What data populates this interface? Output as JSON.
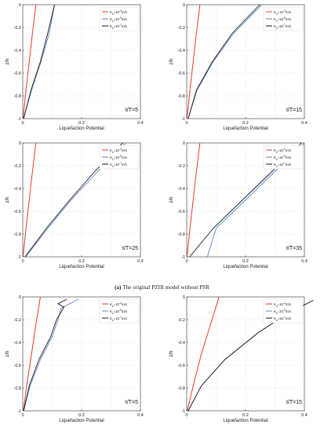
{
  "caption": {
    "label": "(a)",
    "text": "The original PZIII model without PSR"
  },
  "colors": {
    "red": "#e8392e",
    "blue": "#5b87c5",
    "black": "#1a1a1a",
    "grid": "#dcdcdc",
    "axis": "#333333"
  },
  "chart_data": [
    {
      "type": "line",
      "panel_label": "t/T=5",
      "xlabel": "Liquefaction Potential",
      "ylabel": "z/h",
      "xlim": [
        0,
        0.4
      ],
      "ylim": [
        -1,
        0
      ],
      "xticks": [
        0,
        0.2,
        0.4
      ],
      "yticks": [
        -1,
        -0.8,
        -0.6,
        -0.4,
        -0.2,
        0
      ],
      "grid": true,
      "legend_position": "top-right",
      "series": [
        {
          "name": "K_s=10^-3 m/s",
          "color": "red",
          "x": [
            0.045,
            0.033,
            0.022,
            0.011,
            0.001
          ],
          "y": [
            0,
            -0.25,
            -0.5,
            -0.75,
            -1
          ]
        },
        {
          "name": "K_s=10^-5 m/s",
          "color": "blue",
          "x": [
            0.108,
            0.09,
            0.062,
            0.03,
            0.003
          ],
          "y": [
            0,
            -0.25,
            -0.5,
            -0.75,
            -1
          ]
        },
        {
          "name": "K_s=10^-7 m/s",
          "color": "black",
          "x": [
            0.108,
            0.085,
            0.06,
            0.028,
            0.003
          ],
          "y": [
            0,
            -0.25,
            -0.5,
            -0.75,
            -1
          ]
        }
      ]
    },
    {
      "type": "line",
      "panel_label": "t/T=15",
      "xlabel": "Liquefaction Potential",
      "ylabel": "z/h",
      "xlim": [
        0,
        0.4
      ],
      "ylim": [
        -1,
        0
      ],
      "xticks": [
        0,
        0.2,
        0.4
      ],
      "yticks": [
        -1,
        -0.8,
        -0.6,
        -0.4,
        -0.2,
        0
      ],
      "grid": true,
      "legend_position": "top-right",
      "series": [
        {
          "name": "K_s=10^-3 m/s",
          "color": "red",
          "x": [
            0.045,
            0.033,
            0.022,
            0.011,
            0.001
          ],
          "y": [
            0,
            -0.25,
            -0.5,
            -0.75,
            -1
          ]
        },
        {
          "name": "K_s=10^-5 m/s",
          "color": "blue",
          "x": [
            0.255,
            0.16,
            0.09,
            0.035,
            0.005
          ],
          "y": [
            0,
            -0.25,
            -0.5,
            -0.75,
            -1
          ]
        },
        {
          "name": "K_s=10^-7 m/s",
          "color": "black",
          "x": [
            0.248,
            0.155,
            0.087,
            0.033,
            0.005
          ],
          "y": [
            0,
            -0.25,
            -0.5,
            -0.75,
            -1
          ]
        }
      ]
    },
    {
      "type": "line",
      "panel_label": "t/T=25",
      "xlabel": "Liquefaction Potential",
      "ylabel": "z/h",
      "xlim": [
        0,
        0.4
      ],
      "ylim": [
        -1,
        0
      ],
      "xticks": [
        0,
        0.2,
        0.4
      ],
      "yticks": [
        -1,
        -0.8,
        -0.6,
        -0.4,
        -0.2,
        0
      ],
      "grid": true,
      "legend_position": "top-right",
      "series": [
        {
          "name": "K_s=10^-3 m/s",
          "color": "red",
          "x": [
            0.045,
            0.033,
            0.022,
            0.011,
            0.001
          ],
          "y": [
            0,
            -0.25,
            -0.5,
            -0.75,
            -1
          ]
        },
        {
          "name": "K_s=10^-5 m/s",
          "color": "blue",
          "x": [
            0.35,
            0.255,
            0.165,
            0.085,
            0.01
          ],
          "y": [
            0,
            -0.25,
            -0.5,
            -0.75,
            -1
          ]
        },
        {
          "name": "K_s=10^-7 m/s",
          "color": "black",
          "x": [
            0.34,
            0.245,
            0.16,
            0.08,
            0.008
          ],
          "y": [
            0,
            -0.25,
            -0.5,
            -0.75,
            -1
          ]
        }
      ]
    },
    {
      "type": "line",
      "panel_label": "t/T=35",
      "xlabel": "Liquefaction Potential",
      "ylabel": "z/h",
      "xlim": [
        0,
        0.4
      ],
      "ylim": [
        -1,
        0
      ],
      "xticks": [
        0,
        0.2,
        0.4
      ],
      "yticks": [
        -1,
        -0.8,
        -0.6,
        -0.4,
        -0.2,
        0
      ],
      "grid": true,
      "legend_position": "top-right",
      "series": [
        {
          "name": "K_s=10^-3 m/s",
          "color": "red",
          "x": [
            0.045,
            0.033,
            0.022,
            0.011,
            0.001
          ],
          "y": [
            0,
            -0.25,
            -0.5,
            -0.75,
            -1
          ]
        },
        {
          "name": "K_s=10^-5 m/s",
          "color": "blue",
          "x": [
            0.4,
            0.3,
            0.2,
            0.1,
            0.07
          ],
          "y": [
            0,
            -0.25,
            -0.5,
            -0.75,
            -1
          ]
        },
        {
          "name": "K_s=10^-7 m/s",
          "color": "black",
          "x": [
            0.39,
            0.29,
            0.19,
            0.09,
            0.01
          ],
          "y": [
            0,
            -0.25,
            -0.5,
            -0.75,
            -1
          ]
        }
      ]
    },
    {
      "type": "line",
      "panel_label": "t/T=5",
      "xlabel": "Liquefaction Potential",
      "ylabel": "z/h",
      "xlim": [
        0,
        0.4
      ],
      "ylim": [
        -1,
        0
      ],
      "xticks": [
        0,
        0.2,
        0.4
      ],
      "yticks": [
        -1,
        -0.8,
        -0.6,
        -0.4,
        -0.2,
        0
      ],
      "grid": true,
      "legend_position": "top-right",
      "series": [
        {
          "name": "K_s=10^-3 m/s",
          "color": "red",
          "x": [
            0.06,
            0.044,
            0.03,
            0.015,
            0.002
          ],
          "y": [
            0,
            -0.25,
            -0.5,
            -0.75,
            -1
          ]
        },
        {
          "name": "K_s=10^-5 m/s",
          "color": "blue",
          "x": [
            0.19,
            0.16,
            0.13,
            0.12,
            0.1,
            0.06,
            0.025,
            0.003
          ],
          "y": [
            -0.02,
            -0.06,
            -0.1,
            -0.2,
            -0.35,
            -0.55,
            -0.78,
            -1
          ]
        },
        {
          "name": "K_s=10^-7 m/s",
          "color": "black",
          "x": [
            0.15,
            0.12,
            0.14,
            0.115,
            0.095,
            0.055,
            0.022,
            0.003
          ],
          "y": [
            -0.02,
            -0.06,
            -0.09,
            -0.2,
            -0.35,
            -0.55,
            -0.78,
            -1
          ]
        }
      ]
    },
    {
      "type": "line",
      "panel_label": "t/T=15",
      "xlabel": "Liquefaction Potential",
      "ylabel": "z/h",
      "xlim": [
        0,
        0.4
      ],
      "ylim": [
        -1,
        0
      ],
      "xticks": [
        0,
        0.2,
        0.4
      ],
      "yticks": [
        -1,
        -0.8,
        -0.6,
        -0.4,
        -0.2,
        0
      ],
      "grid": true,
      "legend_position": "top-right",
      "series": [
        {
          "name": "K_s=10^-3 m/s",
          "color": "red",
          "x": [
            0.11,
            0.08,
            0.05,
            0.025,
            0.002
          ],
          "y": [
            0,
            -0.25,
            -0.5,
            -0.75,
            -1
          ]
        },
        {
          "name": "K_s=10^-5 m/s",
          "color": "blue",
          "x": [
            0.43,
            0.34,
            0.24,
            0.13,
            0.05,
            0.005
          ],
          "y": [
            -0.03,
            -0.15,
            -0.32,
            -0.55,
            -0.78,
            -1
          ]
        },
        {
          "name": "K_s=10^-7 m/s",
          "color": "black",
          "x": [
            0.43,
            0.34,
            0.24,
            0.13,
            0.05,
            0.005
          ],
          "y": [
            -0.03,
            -0.15,
            -0.32,
            -0.55,
            -0.78,
            -1
          ]
        }
      ]
    }
  ]
}
